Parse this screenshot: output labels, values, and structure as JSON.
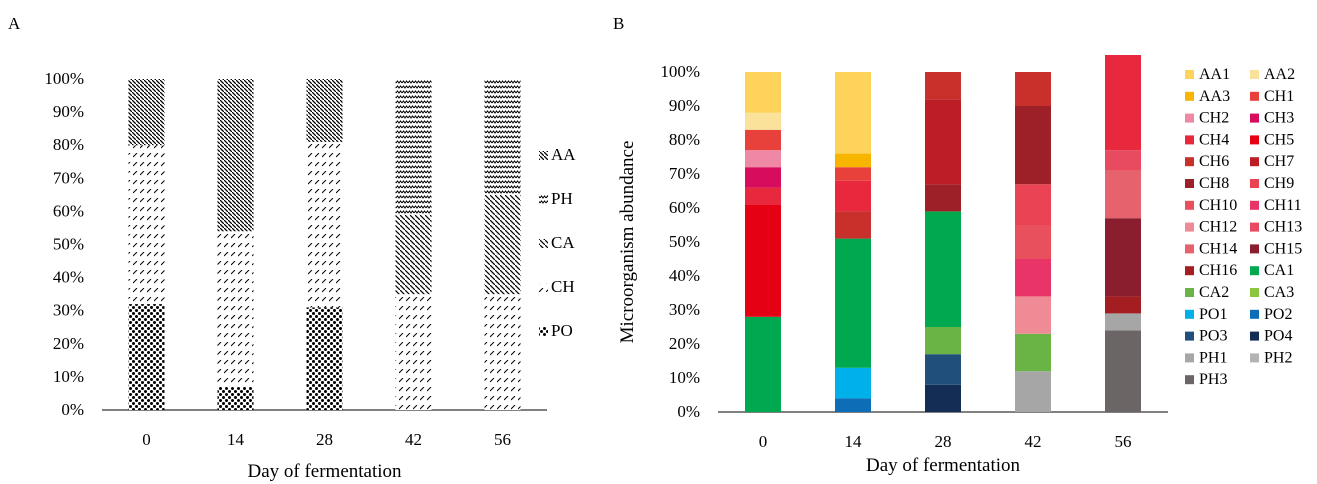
{
  "panels": {
    "A": {
      "letter": "A"
    },
    "B": {
      "letter": "B"
    }
  },
  "chart_data": [
    {
      "panel": "A",
      "type": "bar",
      "stacked": true,
      "xlabel": "Day of fermentation",
      "ylabel": "",
      "ylim": [
        0,
        100
      ],
      "yticks": [
        "0%",
        "10%",
        "20%",
        "30%",
        "40%",
        "50%",
        "60%",
        "70%",
        "80%",
        "90%",
        "100%"
      ],
      "categories": [
        "0",
        "14",
        "28",
        "42",
        "56"
      ],
      "legend_position": "right",
      "series": [
        {
          "name": "PO",
          "pattern": "dots",
          "values": [
            32,
            7,
            31,
            0,
            0
          ]
        },
        {
          "name": "CH",
          "pattern": "slashes",
          "values": [
            48,
            47,
            50,
            35,
            35
          ]
        },
        {
          "name": "CA",
          "pattern": "diagonal",
          "values": [
            0,
            0,
            0,
            24,
            30
          ]
        },
        {
          "name": "PH",
          "pattern": "waves",
          "values": [
            0,
            0,
            0,
            41,
            35
          ]
        },
        {
          "name": "AA",
          "pattern": "diagonal2",
          "values": [
            20,
            46,
            19,
            0,
            0
          ]
        }
      ],
      "legend_order": [
        "AA",
        "PH",
        "CA",
        "CH",
        "PO"
      ]
    },
    {
      "panel": "B",
      "type": "bar",
      "stacked": true,
      "xlabel": "Day of fermentation",
      "ylabel": "Microorganism abundance",
      "ylim": [
        0,
        100
      ],
      "yticks": [
        "0%",
        "10%",
        "20%",
        "30%",
        "40%",
        "50%",
        "60%",
        "70%",
        "80%",
        "90%",
        "100%"
      ],
      "categories": [
        "0",
        "14",
        "28",
        "42",
        "56"
      ],
      "legend_position": "right",
      "series": [
        {
          "name": "PH3",
          "color": "#6b6566",
          "values": [
            0,
            0,
            0,
            0,
            24
          ]
        },
        {
          "name": "PH1",
          "color": "#a6a6a6",
          "values": [
            0,
            0,
            0,
            12,
            5
          ]
        },
        {
          "name": "PO4",
          "color": "#142d55",
          "values": [
            0,
            0,
            8,
            0,
            0
          ]
        },
        {
          "name": "PO3",
          "color": "#1f4f7a",
          "values": [
            0,
            0,
            9,
            0,
            0
          ]
        },
        {
          "name": "PO2",
          "color": "#0d6db6",
          "values": [
            0,
            4,
            0,
            0,
            0
          ]
        },
        {
          "name": "PO1",
          "color": "#00b0e8",
          "values": [
            0,
            9,
            0,
            0,
            0
          ]
        },
        {
          "name": "CA2",
          "color": "#6ab345",
          "values": [
            0,
            0,
            8,
            11,
            0
          ]
        },
        {
          "name": "CA1",
          "color": "#00a84f",
          "values": [
            28,
            38,
            34,
            0,
            0
          ]
        },
        {
          "name": "CH12",
          "color": "#ef8b95",
          "values": [
            0,
            0,
            0,
            11,
            0
          ]
        },
        {
          "name": "CH11",
          "color": "#e83467",
          "values": [
            0,
            0,
            0,
            11,
            0
          ]
        },
        {
          "name": "CH10",
          "color": "#e8505e",
          "values": [
            0,
            0,
            0,
            10,
            0
          ]
        },
        {
          "name": "CH16",
          "color": "#a31d21",
          "values": [
            0,
            0,
            0,
            0,
            5
          ]
        },
        {
          "name": "CH15",
          "color": "#8a1e2e",
          "values": [
            0,
            0,
            0,
            0,
            23
          ]
        },
        {
          "name": "CH14",
          "color": "#e6626c",
          "values": [
            0,
            0,
            0,
            0,
            14
          ]
        },
        {
          "name": "CH13",
          "color": "#e84a5f",
          "values": [
            0,
            0,
            0,
            0,
            6
          ]
        },
        {
          "name": "CH9",
          "color": "#e94354",
          "values": [
            0,
            0,
            0,
            12,
            0
          ]
        },
        {
          "name": "CH8",
          "color": "#9d1f27",
          "values": [
            0,
            0,
            8,
            23,
            0
          ]
        },
        {
          "name": "CH7",
          "color": "#bd1d24",
          "values": [
            0,
            0,
            25,
            0,
            0
          ]
        },
        {
          "name": "CH6",
          "color": "#c8302c",
          "values": [
            0,
            8,
            8,
            10,
            0
          ]
        },
        {
          "name": "CH5",
          "color": "#e60013",
          "values": [
            33,
            0,
            0,
            0,
            0
          ]
        },
        {
          "name": "CH4",
          "color": "#e7283d",
          "values": [
            5,
            9,
            0,
            0,
            28
          ]
        },
        {
          "name": "CH3",
          "color": "#d70c5d",
          "values": [
            6,
            0,
            0,
            0,
            0
          ]
        },
        {
          "name": "CH2",
          "color": "#ee88a5",
          "values": [
            5,
            0,
            0,
            0,
            0
          ]
        },
        {
          "name": "CH1",
          "color": "#e8403a",
          "values": [
            6,
            4,
            0,
            0,
            0
          ]
        },
        {
          "name": "AA3",
          "color": "#f7b500",
          "values": [
            0,
            4,
            0,
            0,
            0
          ]
        },
        {
          "name": "AA2",
          "color": "#fbe29a",
          "values": [
            5,
            0,
            0,
            0,
            0
          ]
        },
        {
          "name": "AA1",
          "color": "#fdd35a",
          "values": [
            12,
            24,
            0,
            0,
            0
          ]
        }
      ],
      "legend": [
        {
          "name": "AA1",
          "color": "#fdd35a"
        },
        {
          "name": "AA2",
          "color": "#fbe29a"
        },
        {
          "name": "AA3",
          "color": "#f7b500"
        },
        {
          "name": "CH1",
          "color": "#e8403a"
        },
        {
          "name": "CH2",
          "color": "#ee88a5"
        },
        {
          "name": "CH3",
          "color": "#d70c5d"
        },
        {
          "name": "CH4",
          "color": "#e7283d"
        },
        {
          "name": "CH5",
          "color": "#e60013"
        },
        {
          "name": "CH6",
          "color": "#c8302c"
        },
        {
          "name": "CH7",
          "color": "#bd1d24"
        },
        {
          "name": "CH8",
          "color": "#9d1f27"
        },
        {
          "name": "CH9",
          "color": "#e94354"
        },
        {
          "name": "CH10",
          "color": "#e8505e"
        },
        {
          "name": "CH11",
          "color": "#e83467"
        },
        {
          "name": "CH12",
          "color": "#ef8b95"
        },
        {
          "name": "CH13",
          "color": "#e84a5f"
        },
        {
          "name": "CH14",
          "color": "#e6626c"
        },
        {
          "name": "CH15",
          "color": "#8a1e2e"
        },
        {
          "name": "CH16",
          "color": "#a31d21"
        },
        {
          "name": "CA1",
          "color": "#00a84f"
        },
        {
          "name": "CA2",
          "color": "#6ab345"
        },
        {
          "name": "CA3",
          "color": "#8cc63f"
        },
        {
          "name": "PO1",
          "color": "#00b0e8"
        },
        {
          "name": "PO2",
          "color": "#0d6db6"
        },
        {
          "name": "PO3",
          "color": "#1f4f7a"
        },
        {
          "name": "PO4",
          "color": "#142d55"
        },
        {
          "name": "PH1",
          "color": "#a6a6a6"
        },
        {
          "name": "PH2",
          "color": "#b3b3b3"
        },
        {
          "name": "PH3",
          "color": "#6b6566"
        }
      ]
    }
  ]
}
